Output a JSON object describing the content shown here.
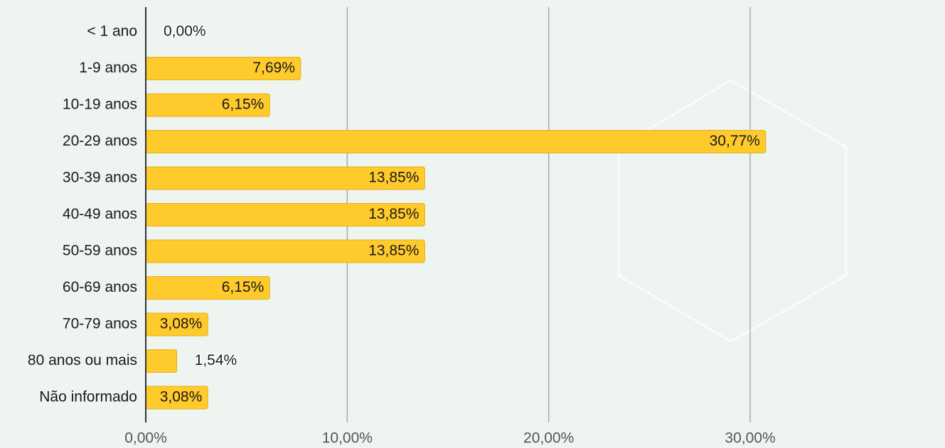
{
  "chart_data": {
    "type": "bar",
    "orientation": "horizontal",
    "categories": [
      "<  1 ano",
      "1-9 anos",
      "10-19 anos",
      "20-29 anos",
      "30-39 anos",
      "40-49 anos",
      "50-59 anos",
      "60-69 anos",
      "70-79 anos",
      "80 anos ou mais",
      "Não informado"
    ],
    "values": [
      0,
      7.69,
      6.15,
      30.77,
      13.85,
      13.85,
      13.85,
      6.15,
      3.08,
      1.54,
      3.08
    ],
    "value_labels": [
      "0,00%",
      "7,69%",
      "6,15%",
      "30,77%",
      "13,85%",
      "13,85%",
      "13,85%",
      "6,15%",
      "3,08%",
      "1,54%",
      "3,08%"
    ],
    "color": "#ffca2c",
    "xlim": [
      0,
      39.67
    ],
    "xticks": [
      {
        "value": 0,
        "label": "0,00%"
      },
      {
        "value": 10,
        "label": "10,00%"
      },
      {
        "value": 20,
        "label": "20,00%"
      },
      {
        "value": 30,
        "label": "30,00%"
      }
    ],
    "grid": true
  }
}
